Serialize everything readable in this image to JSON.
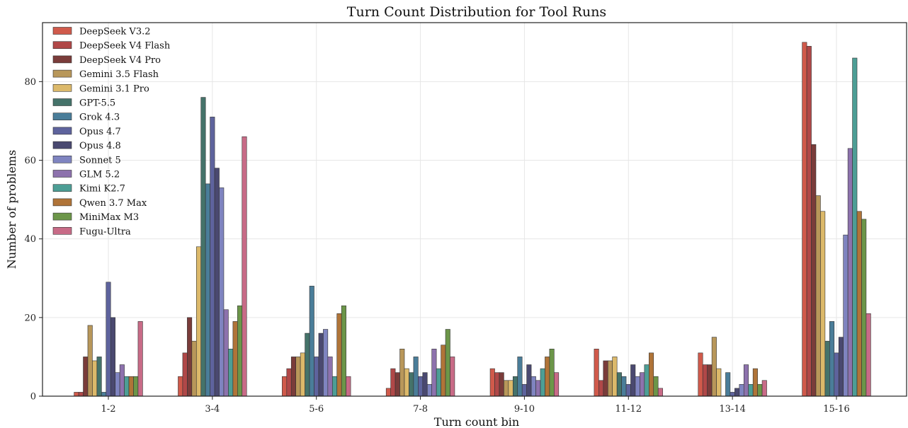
{
  "chart_data": {
    "type": "bar",
    "title": "Turn Count Distribution for Tool Runs",
    "xlabel": "Turn count bin",
    "ylabel": "Number of problems",
    "ylim": [
      0,
      95
    ],
    "yticks": [
      0,
      20,
      40,
      60,
      80
    ],
    "grid": true,
    "legend_position": "top-left",
    "categories": [
      "1-2",
      "3-4",
      "5-6",
      "7-8",
      "9-10",
      "11-12",
      "13-14",
      "15-16"
    ],
    "series": [
      {
        "name": "DeepSeek V3.2",
        "color": "#d05a4b",
        "values": [
          1,
          5,
          5,
          2,
          7,
          12,
          11,
          90
        ]
      },
      {
        "name": "DeepSeek V4 Flash",
        "color": "#b04848",
        "values": [
          1,
          11,
          7,
          7,
          6,
          4,
          8,
          89
        ]
      },
      {
        "name": "DeepSeek V4 Pro",
        "color": "#7a3c3a",
        "values": [
          10,
          20,
          10,
          6,
          6,
          9,
          8,
          64
        ]
      },
      {
        "name": "Gemini 3.5 Flash",
        "color": "#b8975a",
        "values": [
          18,
          14,
          10,
          12,
          4,
          9,
          15,
          51
        ]
      },
      {
        "name": "Gemini 3.1 Pro",
        "color": "#dcb96a",
        "values": [
          9,
          38,
          11,
          7,
          4,
          10,
          7,
          47
        ]
      },
      {
        "name": "GPT-5.5",
        "color": "#45736a",
        "values": [
          10,
          76,
          16,
          6,
          5,
          6,
          0,
          14
        ]
      },
      {
        "name": "Grok 4.3",
        "color": "#4a7d99",
        "values": [
          1,
          54,
          28,
          10,
          10,
          5,
          6,
          19
        ]
      },
      {
        "name": "Opus 4.7",
        "color": "#5e639d",
        "values": [
          29,
          71,
          10,
          5,
          3,
          3,
          1,
          11
        ]
      },
      {
        "name": "Opus 4.8",
        "color": "#4a4970",
        "values": [
          20,
          58,
          16,
          6,
          8,
          8,
          2,
          15
        ]
      },
      {
        "name": "Sonnet 5",
        "color": "#7f84c0",
        "values": [
          6,
          53,
          17,
          3,
          5,
          5,
          3,
          41
        ]
      },
      {
        "name": "GLM 5.2",
        "color": "#8d72ad",
        "values": [
          8,
          22,
          10,
          12,
          4,
          6,
          8,
          63
        ]
      },
      {
        "name": "Kimi K2.7",
        "color": "#4d9e95",
        "values": [
          5,
          12,
          5,
          7,
          7,
          8,
          3,
          86
        ]
      },
      {
        "name": "Qwen 3.7 Max",
        "color": "#b07438",
        "values": [
          5,
          19,
          21,
          13,
          10,
          11,
          7,
          47
        ]
      },
      {
        "name": "MiniMax M3",
        "color": "#6c9649",
        "values": [
          5,
          23,
          23,
          17,
          12,
          5,
          3,
          45
        ]
      },
      {
        "name": "Fugu-Ultra",
        "color": "#c86b87",
        "values": [
          19,
          66,
          5,
          10,
          6,
          2,
          4,
          21
        ]
      }
    ]
  }
}
